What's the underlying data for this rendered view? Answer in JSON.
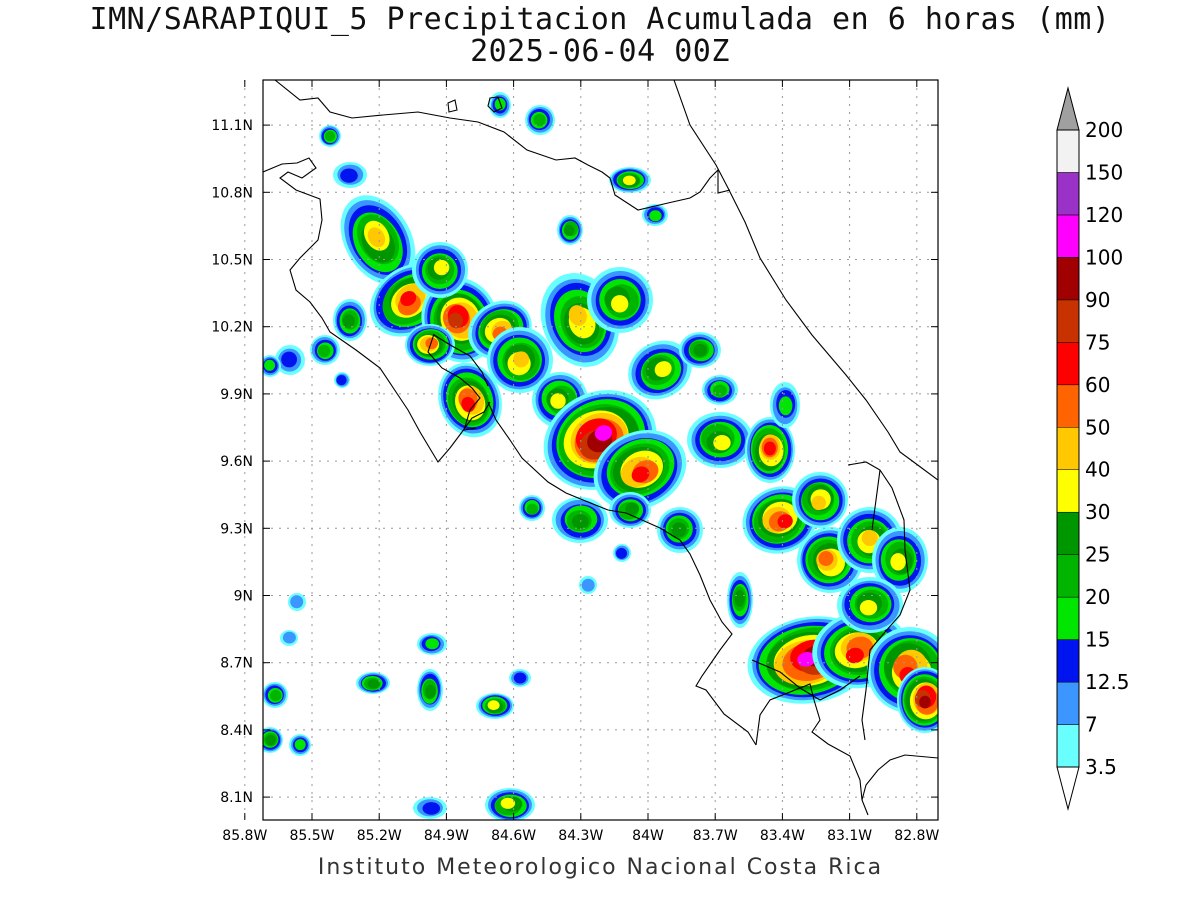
{
  "title_line1": "IMN/SARAPIQUI_5 Precipitacion Acumulada en 6 horas (mm)",
  "title_line2": "2025-06-04 00Z",
  "footer": "Instituto Meteorologico Nacional Costa Rica",
  "map": {
    "lon_range": [
      -86.1,
      -83.1
    ],
    "lat_range": [
      8.0,
      11.3
    ],
    "lat_ticks": [
      {
        "value": 11.1,
        "label": "11.1N"
      },
      {
        "value": 10.8,
        "label": "10.8N"
      },
      {
        "value": 10.5,
        "label": "10.5N"
      },
      {
        "value": 10.2,
        "label": "10.2N"
      },
      {
        "value": 9.9,
        "label": "9.9N"
      },
      {
        "value": 9.6,
        "label": "9.6N"
      },
      {
        "value": 9.3,
        "label": "9.3N"
      },
      {
        "value": 9.0,
        "label": "9N"
      },
      {
        "value": 8.7,
        "label": "8.7N"
      },
      {
        "value": 8.4,
        "label": "8.4N"
      },
      {
        "value": 8.1,
        "label": "8.1N"
      }
    ],
    "lon_ticks": [
      {
        "value": -85.8,
        "label": "85.8W"
      },
      {
        "value": -85.5,
        "label": "85.5W"
      },
      {
        "value": -85.2,
        "label": "85.2W"
      },
      {
        "value": -84.9,
        "label": "84.9W"
      },
      {
        "value": -84.6,
        "label": "84.6W"
      },
      {
        "value": -84.3,
        "label": "84.3W"
      },
      {
        "value": -84.0,
        "label": "84W"
      },
      {
        "value": -83.7,
        "label": "83.7W"
      },
      {
        "value": -83.4,
        "label": "83.4W"
      },
      {
        "value": -83.1,
        "label": "83.1W"
      },
      {
        "value": -82.8,
        "label": "82.8W"
      }
    ]
  },
  "colorbar": {
    "labels": [
      "3.5",
      "7",
      "12.5",
      "15",
      "20",
      "25",
      "30",
      "40",
      "50",
      "60",
      "75",
      "90",
      "100",
      "120",
      "150",
      "200"
    ],
    "colors": [
      "#6affff",
      "#3c96ff",
      "#0014f0",
      "#00e600",
      "#00b400",
      "#009600",
      "#ffff00",
      "#ffc800",
      "#ff6400",
      "#ff0000",
      "#c83200",
      "#a00000",
      "#ff00ff",
      "#9b32c8",
      "#f2f2f2",
      "#a0a0a0"
    ]
  }
}
